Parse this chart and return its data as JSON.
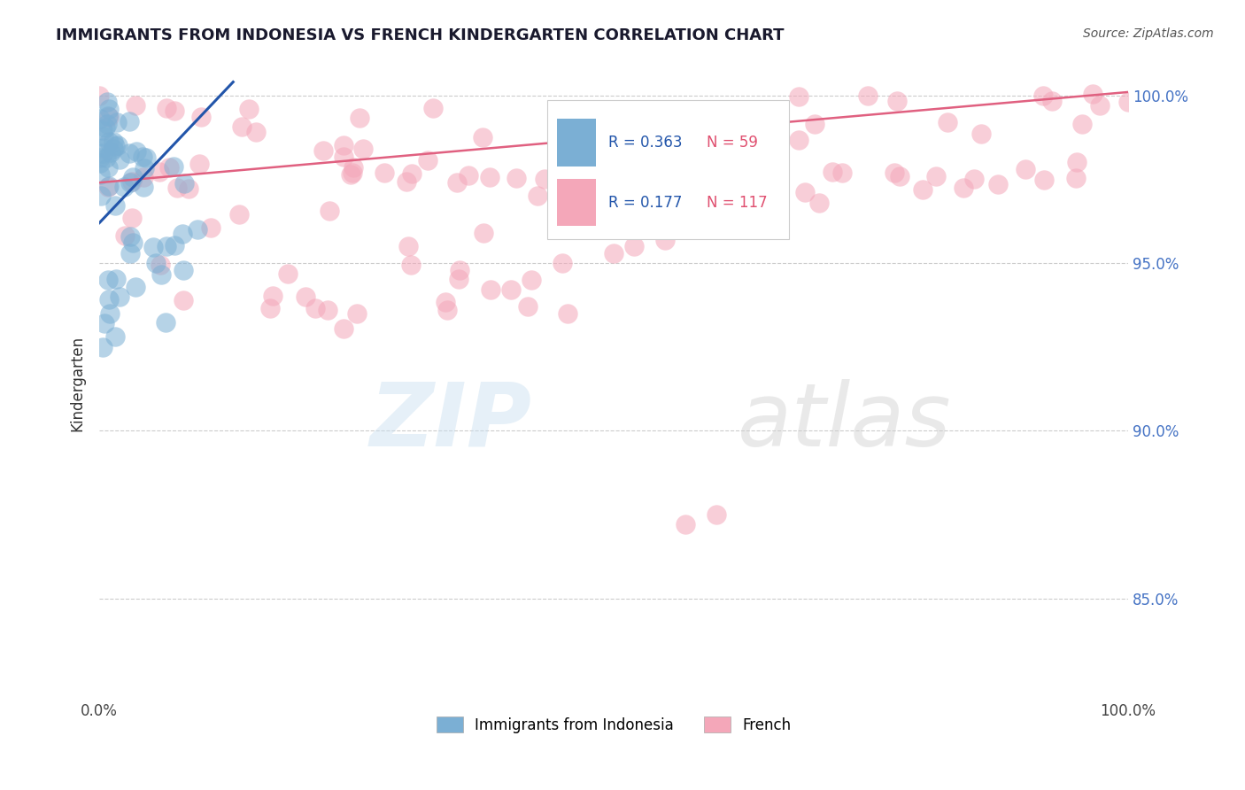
{
  "title": "IMMIGRANTS FROM INDONESIA VS FRENCH KINDERGARTEN CORRELATION CHART",
  "source_text": "Source: ZipAtlas.com",
  "ylabel": "Kindergarten",
  "xlim": [
    0.0,
    1.0
  ],
  "ylim": [
    0.82,
    1.008
  ],
  "ytick_values": [
    0.85,
    0.9,
    0.95,
    1.0
  ],
  "ytick_labels": [
    "85.0%",
    "90.0%",
    "95.0%",
    "100.0%"
  ],
  "blue_color": "#7BAFD4",
  "pink_color": "#F4A7B9",
  "blue_line_color": "#2255AA",
  "pink_line_color": "#E06080",
  "legend_blue_r": "R = 0.363",
  "legend_blue_n": "N = 59",
  "legend_pink_r": "R = 0.177",
  "legend_pink_n": "N = 117",
  "watermark_zip": "ZIP",
  "watermark_atlas": "atlas",
  "blue_label": "Immigrants from Indonesia",
  "pink_label": "French"
}
